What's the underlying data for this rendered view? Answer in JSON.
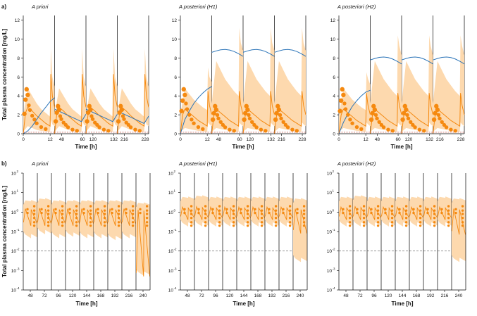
{
  "colors": {
    "orange": "#f5890f",
    "band": "#fdd9ae",
    "blue": "#2b74b8",
    "red": "#c0392b",
    "axis": "#000000",
    "text": "#111111"
  },
  "chart_data": [
    {
      "type": "line",
      "panel": "a",
      "panel_label": "a)",
      "ylabel": "Total plasma concentration [mg/L]",
      "xlabel": "Time [h]",
      "yscale": "linear",
      "ylim": [
        0,
        12.5
      ],
      "yticks": [
        "0",
        "2",
        "4",
        "6",
        "8",
        "10",
        "12"
      ],
      "segments": [
        {
          "range": [
            0,
            14
          ],
          "ticks": [
            "0",
            "12"
          ]
        },
        {
          "range": [
            44,
            62
          ],
          "ticks": [
            "48",
            "60"
          ]
        },
        {
          "range": [
            116,
            134
          ],
          "ticks": [
            "120",
            "132"
          ]
        },
        {
          "range": [
            212,
            230
          ],
          "ticks": [
            "216",
            "228"
          ]
        }
      ],
      "subplots": [
        {
          "title": "A priori",
          "band": {
            "x": [
              0,
              2,
              4,
              6,
              8,
              10,
              12,
              12.3,
              13,
              14
            ],
            "lo": [
              0.2,
              0.8,
              0.6,
              0.4,
              0.3,
              0.25,
              0.2,
              1.5,
              1.0,
              0.8
            ],
            "hi": [
              2,
              4.8,
              4.0,
              3.2,
              2.6,
              2.2,
              1.8,
              9.0,
              6.0,
              5.0
            ]
          },
          "median": {
            "x": [
              0,
              1,
              2,
              4,
              6,
              8,
              10,
              12,
              12.3,
              13,
              14
            ],
            "y": [
              0,
              2.2,
              2.8,
              2.4,
              1.9,
              1.5,
              1.1,
              0.8,
              6.3,
              4.0,
              2.8
            ]
          },
          "blue": {
            "x": [
              0,
              2,
              4,
              6,
              8,
              10,
              12,
              14
            ],
            "y": [
              0,
              0.3,
              0.8,
              1.5,
              2.2,
              2.8,
              3.4,
              3.8
            ]
          },
          "observations": {
            "x": [
              0.5,
              1,
              1.5,
              2,
              2.5,
              3,
              4,
              5,
              6,
              8,
              10
            ],
            "y": [
              2.1,
              3.6,
              4.7,
              4.1,
              3.0,
              2.5,
              1.9,
              1.5,
              1.1,
              0.7,
              0.5
            ]
          }
        },
        {
          "title": "A posteriori (H1)",
          "band": {
            "x": [
              0,
              2,
              4,
              6,
              8,
              10,
              12,
              12.3,
              13,
              14
            ],
            "lo": [
              0.2,
              0.6,
              0.5,
              0.4,
              0.3,
              0.25,
              0.2,
              1.2,
              1.0,
              0.8
            ],
            "hi": [
              2,
              4.8,
              4.2,
              3.6,
              3.2,
              2.8,
              2.5,
              7.0,
              6.0,
              5.5
            ]
          },
          "median": {
            "x": [
              0,
              1,
              2,
              4,
              6,
              8,
              10,
              12,
              12.3,
              13,
              14
            ],
            "y": [
              0,
              2.0,
              2.6,
              2.2,
              1.8,
              1.4,
              1.1,
              0.8,
              4.5,
              3.0,
              2.0
            ]
          },
          "blue": {
            "x": [
              0,
              2,
              4,
              6,
              8,
              10,
              12,
              14
            ],
            "y": [
              0,
              1.5,
              2.4,
              3.2,
              3.8,
              4.3,
              4.7,
              5.0
            ]
          },
          "observations": {
            "x": [
              0.5,
              1,
              1.5,
              2,
              2.5,
              3,
              4,
              5,
              6,
              8,
              10
            ],
            "y": [
              2.4,
              3.5,
              4.7,
              4.1,
              3.2,
              2.6,
              2.0,
              1.5,
              1.1,
              0.7,
              0.5
            ]
          }
        },
        {
          "title": "A posteriori (H2)",
          "band": {
            "x": [
              0,
              2,
              4,
              6,
              8,
              10,
              12,
              12.3,
              13,
              14
            ],
            "lo": [
              0.2,
              0.6,
              0.5,
              0.4,
              0.3,
              0.25,
              0.2,
              1.2,
              1.0,
              0.8
            ],
            "hi": [
              2,
              4.8,
              4.2,
              3.6,
              3.2,
              2.8,
              2.5,
              6.5,
              5.8,
              5.2
            ]
          },
          "median": {
            "x": [
              0,
              1,
              2,
              4,
              6,
              8,
              10,
              12,
              12.3,
              13,
              14
            ],
            "y": [
              0,
              2.0,
              2.6,
              2.2,
              1.8,
              1.4,
              1.1,
              0.8,
              4.3,
              3.0,
              2.0
            ]
          },
          "blue": {
            "x": [
              0,
              2,
              4,
              6,
              8,
              10,
              12,
              14
            ],
            "y": [
              0,
              1.2,
              2.1,
              2.9,
              3.5,
              4.0,
              4.4,
              4.6
            ]
          },
          "observations": {
            "x": [
              0.5,
              1,
              1.5,
              2,
              2.5,
              3,
              4,
              5,
              6,
              8,
              10
            ],
            "y": [
              2.4,
              3.5,
              4.7,
              4.1,
              3.2,
              2.6,
              2.0,
              1.5,
              1.1,
              0.7,
              0.5
            ]
          }
        }
      ]
    },
    {
      "type": "line",
      "panel": "b",
      "panel_label": "b)",
      "ylabel": "Total plasma concentration [mg/L]",
      "xlabel": "Time [h]",
      "yscale": "log",
      "ylim": [
        0.0001,
        100
      ],
      "yticks": [
        "10",
        "10",
        "10",
        "10",
        "10",
        "10",
        "10"
      ],
      "ytick_exponents": [
        "2",
        "1",
        "0",
        "-1",
        "-2",
        "-3",
        "-4"
      ],
      "xticks": [
        "48",
        "72",
        "96",
        "120",
        "144",
        "168",
        "192",
        "216",
        "240"
      ],
      "dashed_line": 0.01,
      "subplots": [
        {
          "title": "A priori",
          "band_lo": [
            0.05,
            0.08,
            0.05,
            0.06,
            0.05,
            0.05,
            0.04,
            0.05,
            0.0006
          ],
          "band_hi": [
            4,
            5,
            4,
            4,
            4,
            4,
            4,
            4,
            3
          ],
          "median_peak": [
            1.5,
            1.6,
            1.5,
            1.5,
            1.5,
            1.5,
            1.5,
            1.5,
            1.3
          ],
          "median_trough": [
            0.2,
            0.2,
            0.2,
            0.2,
            0.2,
            0.2,
            0.2,
            0.2,
            0.0005
          ]
        },
        {
          "title": "A posteriori (H1)",
          "band_lo": [
            0.2,
            0.2,
            0.2,
            0.2,
            0.2,
            0.2,
            0.2,
            0.2,
            0.003
          ],
          "band_hi": [
            6,
            7,
            6,
            6,
            6,
            6,
            6,
            6,
            5
          ],
          "median_peak": [
            1.8,
            1.9,
            1.8,
            1.8,
            1.8,
            1.8,
            1.8,
            1.8,
            1.5
          ],
          "median_trough": [
            0.4,
            0.4,
            0.4,
            0.4,
            0.4,
            0.4,
            0.4,
            0.4,
            0.08
          ]
        },
        {
          "title": "A posteriori (H2)",
          "band_lo": [
            0.2,
            0.2,
            0.2,
            0.2,
            0.2,
            0.2,
            0.2,
            0.2,
            0.003
          ],
          "band_hi": [
            6,
            7,
            6,
            6,
            6,
            6,
            6,
            6,
            5
          ],
          "median_peak": [
            1.8,
            1.9,
            1.8,
            1.8,
            1.8,
            1.8,
            1.8,
            1.8,
            1.5
          ],
          "median_trough": [
            0.4,
            0.4,
            0.4,
            0.4,
            0.4,
            0.4,
            0.4,
            0.4,
            0.07
          ]
        }
      ],
      "observations_per_interval": [
        0.2,
        0.3,
        0.5,
        0.8,
        1.2,
        2.0
      ]
    }
  ]
}
